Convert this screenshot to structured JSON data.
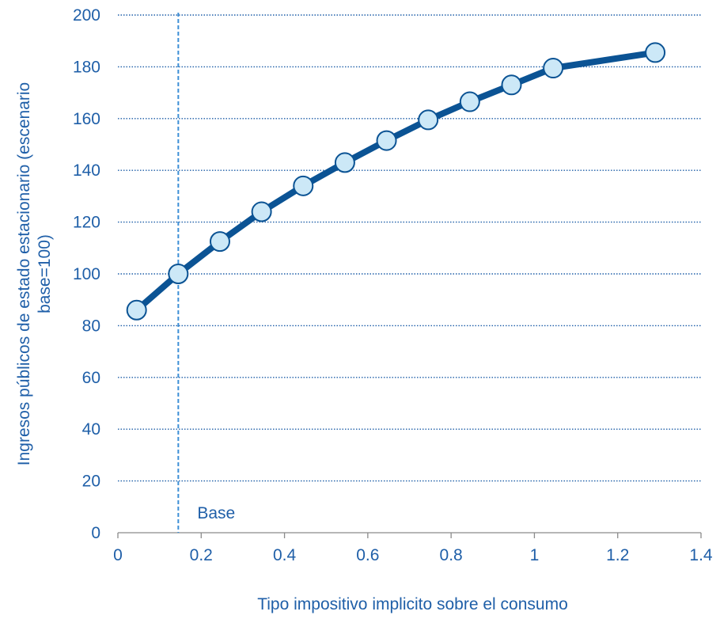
{
  "chart_data": {
    "type": "line",
    "title": "",
    "xlabel": "Tipo impositivo implicito sobre el consumo",
    "ylabel_lines": [
      "Ingresos públicos de estado estacionario (escenario",
      "base=100)"
    ],
    "xlim": [
      0,
      1.4
    ],
    "ylim": [
      0,
      200
    ],
    "xticks": [
      0,
      0.2,
      0.4,
      0.6,
      0.8,
      1,
      1.2,
      1.4
    ],
    "xtick_labels": [
      "0",
      "0.2",
      "0.4",
      "0.6",
      "0.8",
      "1",
      "1.2",
      "1.4"
    ],
    "yticks": [
      0,
      20,
      40,
      60,
      80,
      100,
      120,
      140,
      160,
      180,
      200
    ],
    "ytick_labels": [
      "0",
      "20",
      "40",
      "60",
      "80",
      "100",
      "120",
      "140",
      "160",
      "180",
      "200"
    ],
    "grid": "horizontal dotted",
    "series": [
      {
        "x": [
          0.045,
          0.145,
          0.245,
          0.345,
          0.445,
          0.545,
          0.645,
          0.745,
          0.845,
          0.945,
          1.045,
          1.29
        ],
        "y": [
          86,
          100,
          112.5,
          124,
          134,
          143,
          151.5,
          159.5,
          166.5,
          173,
          179.5,
          185.5
        ]
      }
    ],
    "reference_line": {
      "x": 0.145,
      "label": "Base"
    },
    "colors": {
      "line": "#0b5394",
      "marker_fill": "#cce8f7",
      "marker_edge": "#0b5394",
      "grid": "#1f5fa8",
      "text": "#1f5fa8",
      "reference": "#3d8fd6"
    }
  }
}
